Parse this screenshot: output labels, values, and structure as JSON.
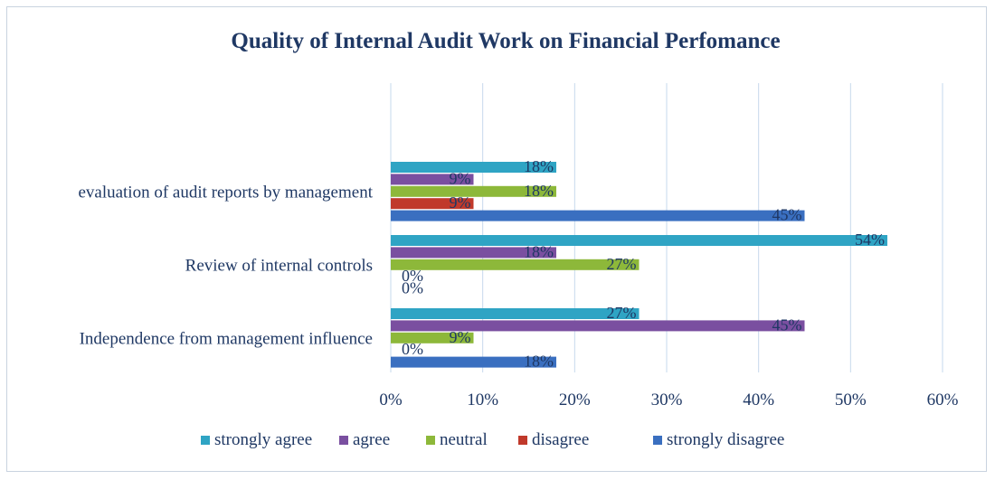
{
  "chart_data": {
    "type": "bar",
    "orientation": "horizontal",
    "title": "Quality of Internal Audit Work on Financial Perfomance",
    "categories": [
      "evaluation of audit reports by management",
      "Review of internal controls",
      "Independence from management influence"
    ],
    "series": [
      {
        "name": "strongly agree",
        "color": "#2fa4c4",
        "values": [
          18,
          54,
          27
        ],
        "labels": [
          "18%",
          "54%",
          "27%"
        ]
      },
      {
        "name": "agree",
        "color": "#7a4fa0",
        "values": [
          9,
          18,
          45
        ],
        "labels": [
          "9%",
          "18%",
          "45%"
        ]
      },
      {
        "name": "neutral",
        "color": "#8db83a",
        "values": [
          18,
          27,
          9
        ],
        "labels": [
          "18%",
          "27%",
          "9%"
        ]
      },
      {
        "name": "disagree",
        "color": "#c0392b",
        "values": [
          9,
          0,
          0
        ],
        "labels": [
          "9%",
          "0%",
          "0%"
        ]
      },
      {
        "name": "strongly disagree",
        "color": "#3a6fc0",
        "values": [
          45,
          0,
          18
        ],
        "labels": [
          "45%",
          "0%",
          "18%"
        ]
      }
    ],
    "xlim": [
      0,
      60
    ],
    "xticks": [
      "0%",
      "10%",
      "20%",
      "30%",
      "40%",
      "50%",
      "60%"
    ],
    "grid": true,
    "legend_position": "bottom"
  }
}
